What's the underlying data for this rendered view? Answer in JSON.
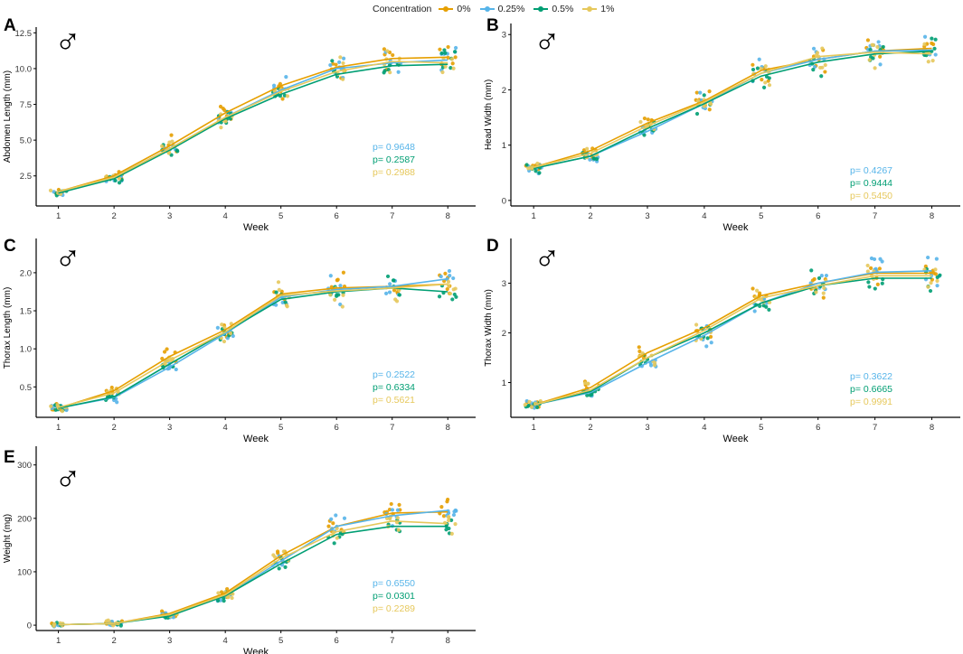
{
  "legend": {
    "title": "Concentration",
    "items": [
      {
        "label": "0%",
        "color": "#E69F00"
      },
      {
        "label": "0.25%",
        "color": "#56B4E9"
      },
      {
        "label": "0.5%",
        "color": "#009E73"
      },
      {
        "label": "1%",
        "color": "#E6C85C"
      }
    ]
  },
  "sex_symbol": "♂",
  "chart_data": [
    {
      "panel": "A",
      "type": "line",
      "xlabel": "Week",
      "ylabel": "Abdomen Length (mm)",
      "x": [
        1,
        2,
        3,
        4,
        5,
        6,
        7,
        8
      ],
      "xlim": [
        0.6,
        8.5
      ],
      "ylim": [
        0.4,
        12.9
      ],
      "yticks": [
        "2.5",
        "5.0",
        "7.5",
        "10.0",
        "12.5"
      ],
      "series": [
        {
          "name": "0%",
          "values": [
            1.4,
            2.5,
            4.6,
            6.9,
            8.8,
            10.1,
            10.7,
            10.8
          ]
        },
        {
          "name": "0.25%",
          "values": [
            1.3,
            2.4,
            4.4,
            6.6,
            8.5,
            10.0,
            10.4,
            10.6
          ]
        },
        {
          "name": "0.5%",
          "values": [
            1.3,
            2.3,
            4.3,
            6.5,
            8.2,
            9.6,
            10.2,
            10.3
          ]
        },
        {
          "name": "1%",
          "values": [
            1.4,
            2.4,
            4.4,
            6.6,
            8.4,
            9.8,
            10.5,
            10.4
          ]
        }
      ],
      "pvalues": [
        "p= 0.9648",
        "p= 0.2587",
        "p= 0.2988"
      ]
    },
    {
      "panel": "B",
      "type": "line",
      "xlabel": "Week",
      "ylabel": "Head Width (mm)",
      "x": [
        1,
        2,
        3,
        4,
        5,
        6,
        7,
        8
      ],
      "xlim": [
        0.6,
        8.5
      ],
      "ylim": [
        -0.1,
        3.2
      ],
      "yticks": [
        "0",
        "1",
        "2",
        "3"
      ],
      "series": [
        {
          "name": "0%",
          "values": [
            0.6,
            0.9,
            1.4,
            1.8,
            2.35,
            2.55,
            2.7,
            2.75
          ]
        },
        {
          "name": "0.25%",
          "values": [
            0.58,
            0.8,
            1.25,
            1.75,
            2.3,
            2.55,
            2.7,
            2.72
          ]
        },
        {
          "name": "0.5%",
          "values": [
            0.58,
            0.8,
            1.3,
            1.75,
            2.25,
            2.5,
            2.65,
            2.7
          ]
        },
        {
          "name": "1%",
          "values": [
            0.6,
            0.85,
            1.35,
            1.78,
            2.3,
            2.6,
            2.68,
            2.65
          ]
        }
      ],
      "pvalues": [
        "p= 0.4267",
        "p= 0.9444",
        "p= 0.5450"
      ]
    },
    {
      "panel": "C",
      "type": "line",
      "xlabel": "Week",
      "ylabel": "Thorax Length (mm)",
      "x": [
        1,
        2,
        3,
        4,
        5,
        6,
        7,
        8
      ],
      "xlim": [
        0.6,
        8.5
      ],
      "ylim": [
        0.1,
        2.45
      ],
      "yticks": [
        "0.5",
        "1.0",
        "1.5",
        "2.0"
      ],
      "series": [
        {
          "name": "0%",
          "values": [
            0.22,
            0.45,
            0.9,
            1.25,
            1.72,
            1.8,
            1.82,
            1.85
          ]
        },
        {
          "name": "0.25%",
          "values": [
            0.22,
            0.36,
            0.76,
            1.2,
            1.68,
            1.78,
            1.82,
            1.92
          ]
        },
        {
          "name": "0.5%",
          "values": [
            0.22,
            0.37,
            0.8,
            1.22,
            1.65,
            1.75,
            1.8,
            1.75
          ]
        },
        {
          "name": "1%",
          "values": [
            0.23,
            0.42,
            0.85,
            1.22,
            1.7,
            1.76,
            1.8,
            1.85
          ]
        }
      ],
      "pvalues": [
        "p= 0.2522",
        "p= 0.6334",
        "p= 0.5621"
      ]
    },
    {
      "panel": "D",
      "type": "line",
      "xlabel": "Week",
      "ylabel": "Thorax Width (mm)",
      "x": [
        1,
        2,
        3,
        4,
        5,
        6,
        7,
        8
      ],
      "xlim": [
        0.6,
        8.5
      ],
      "ylim": [
        0.3,
        3.9
      ],
      "yticks": [
        "1",
        "2",
        "3"
      ],
      "series": [
        {
          "name": "0%",
          "values": [
            0.55,
            0.9,
            1.6,
            2.1,
            2.75,
            3.0,
            3.2,
            3.2
          ]
        },
        {
          "name": "0.25%",
          "values": [
            0.55,
            0.8,
            1.4,
            1.95,
            2.6,
            3.0,
            3.22,
            3.25
          ]
        },
        {
          "name": "0.5%",
          "values": [
            0.55,
            0.82,
            1.5,
            2.0,
            2.6,
            2.95,
            3.1,
            3.1
          ]
        },
        {
          "name": "1%",
          "values": [
            0.55,
            0.85,
            1.5,
            2.05,
            2.7,
            2.95,
            3.15,
            3.15
          ]
        }
      ],
      "pvalues": [
        "p= 0.3622",
        "p= 0.6665",
        "p= 0.9991"
      ]
    },
    {
      "panel": "E",
      "type": "line",
      "xlabel": "Week",
      "ylabel": "Weight (mg)",
      "x": [
        1,
        2,
        3,
        4,
        5,
        6,
        7,
        8
      ],
      "xlim": [
        0.6,
        8.5
      ],
      "ylim": [
        -10,
        335
      ],
      "yticks": [
        "0",
        "100",
        "200",
        "300"
      ],
      "series": [
        {
          "name": "0%",
          "values": [
            1,
            3,
            22,
            60,
            130,
            185,
            210,
            212
          ]
        },
        {
          "name": "0.25%",
          "values": [
            1,
            3,
            18,
            55,
            120,
            185,
            205,
            215
          ]
        },
        {
          "name": "0.5%",
          "values": [
            1,
            3,
            17,
            55,
            115,
            170,
            185,
            185
          ]
        },
        {
          "name": "1%",
          "values": [
            1,
            3,
            20,
            57,
            125,
            175,
            195,
            190
          ]
        }
      ],
      "pvalues": [
        "p= 0.6550",
        "p= 0.0301",
        "p= 0.2289"
      ]
    }
  ]
}
